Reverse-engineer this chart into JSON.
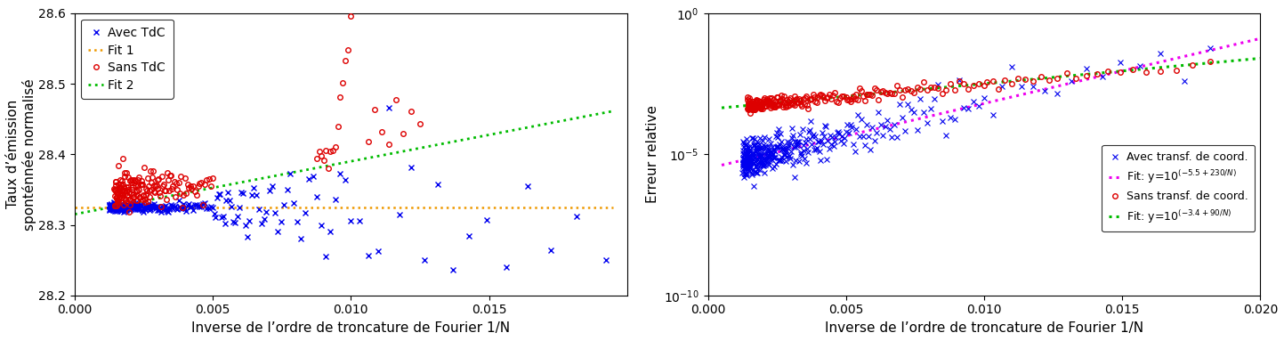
{
  "left_plot": {
    "xlim": [
      0,
      0.02
    ],
    "ylim": [
      28.2,
      28.6
    ],
    "xlabel": "Inverse de l’ordre de troncature de Fourier 1/N",
    "ylabel": "Taux d’émission\nsponténnée normalisé",
    "xticks": [
      0,
      0.005,
      0.01,
      0.015
    ],
    "yticks": [
      28.2,
      28.3,
      28.4,
      28.5,
      28.6
    ],
    "avec_tdc_color": "#0000EE",
    "sans_tdc_color": "#DD0000",
    "fit1_color": "#EE9900",
    "fit2_color": "#00BB00",
    "fit1_value": 28.325,
    "fit2_slope": 7.5,
    "fit2_intercept": 28.315
  },
  "right_plot": {
    "xlim": [
      0,
      0.02
    ],
    "xlabel": "Inverse de l’ordre de troncature de Fourier 1/N",
    "ylabel": "Erreur relative",
    "xticks": [
      0,
      0.005,
      0.01,
      0.015,
      0.02
    ],
    "avec_tdc_color": "#0000EE",
    "sans_tdc_color": "#DD0000",
    "fit_avec_color": "#EE00EE",
    "fit_sans_color": "#00BB00",
    "fit_avec_a": -5.5,
    "fit_avec_b": 230,
    "fit_sans_a": -3.4,
    "fit_sans_b": 90
  }
}
